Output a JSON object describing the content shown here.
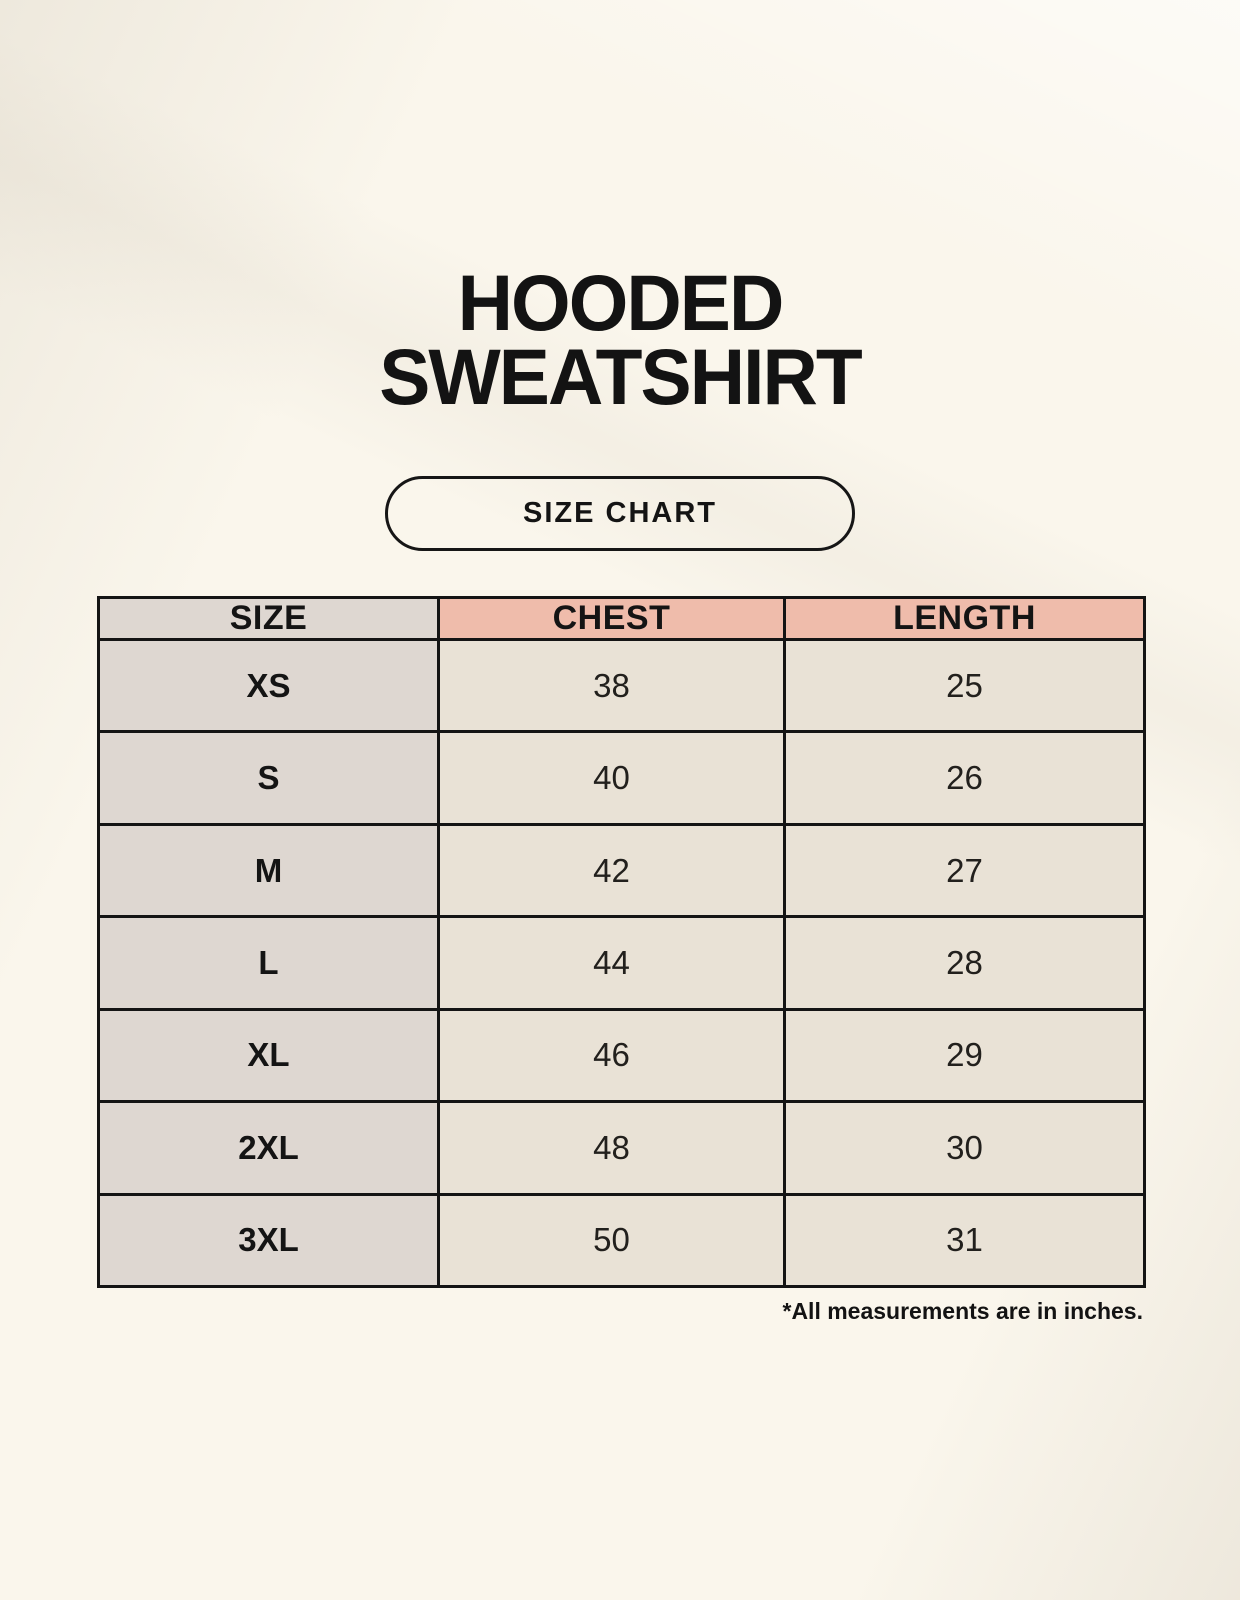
{
  "header": {
    "title_line1": "HOODED",
    "title_line2": "SWEATSHIRT",
    "badge_label": "SIZE CHART"
  },
  "colors": {
    "page_background": "#faf6ec",
    "header_size_bg": "#ded7d1",
    "header_measure_bg": "#efbcab",
    "row_label_bg": "#ded7d1",
    "row_value_bg": "#e9e2d6",
    "border": "#141414",
    "text": "#141414"
  },
  "chart_data": {
    "type": "table",
    "title": "HOODED SWEATSHIRT SIZE CHART",
    "columns": [
      "SIZE",
      "CHEST",
      "LENGTH"
    ],
    "rows": [
      {
        "size": "XS",
        "chest": "38",
        "length": "25"
      },
      {
        "size": "S",
        "chest": "40",
        "length": "26"
      },
      {
        "size": "M",
        "chest": "42",
        "length": "27"
      },
      {
        "size": "L",
        "chest": "44",
        "length": "28"
      },
      {
        "size": "XL",
        "chest": "46",
        "length": "29"
      },
      {
        "size": "2XL",
        "chest": "48",
        "length": "30"
      },
      {
        "size": "3XL",
        "chest": "50",
        "length": "31"
      }
    ],
    "units_note": "*All measurements are in inches."
  },
  "footnote": "*All measurements are in inches."
}
